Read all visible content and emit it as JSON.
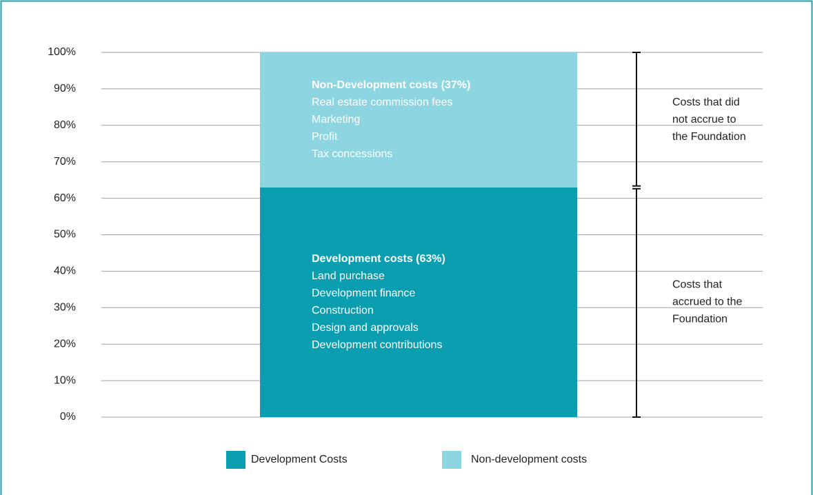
{
  "chart_data": {
    "type": "stacked_bar",
    "categories": [
      null
    ],
    "series": [
      {
        "name": "Development Costs",
        "color": "#0b9db0",
        "values": [
          63
        ]
      },
      {
        "name": "Non-development costs",
        "color": "#8dd5e1",
        "values": [
          37
        ]
      }
    ],
    "ylim": [
      0,
      100
    ],
    "yticks": [
      {
        "value": 0,
        "label": "0%"
      },
      {
        "value": 10,
        "label": "10%"
      },
      {
        "value": 20,
        "label": "20%"
      },
      {
        "value": 30,
        "label": "30%"
      },
      {
        "value": 40,
        "label": "40%"
      },
      {
        "value": 50,
        "label": "50%"
      },
      {
        "value": 60,
        "label": "60%"
      },
      {
        "value": 70,
        "label": "70%"
      },
      {
        "value": 80,
        "label": "80%"
      },
      {
        "value": 90,
        "label": "90%"
      },
      {
        "value": 100,
        "label": "100%"
      }
    ],
    "grid": true,
    "legend": "bottom",
    "annotations": [
      {
        "title": "Development costs (63%)",
        "lines": [
          "Land purchase",
          "Development finance",
          "Construction",
          "Design and approvals",
          "Development contributions"
        ]
      },
      {
        "title": "Non-Development costs (37%)",
        "lines": [
          "Real estate commission fees",
          "Marketing",
          "Profit",
          "Tax concessions"
        ]
      }
    ],
    "bracket_labels": [
      [
        "Costs that",
        "accrued to the",
        "Foundation"
      ],
      [
        "Costs that did",
        "not accrue to",
        "the Foundation"
      ]
    ]
  }
}
